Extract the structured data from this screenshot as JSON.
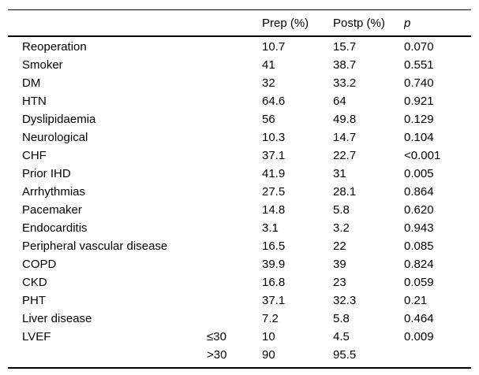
{
  "table": {
    "header": {
      "label": "",
      "sub": "",
      "prep": "Prep (%)",
      "postp": "Postp (%)",
      "p": "p"
    },
    "rows": [
      {
        "label": "Reoperation",
        "sub": "",
        "prep": "10.7",
        "postp": "15.7",
        "p": "0.070"
      },
      {
        "label": "Smoker",
        "sub": "",
        "prep": "41",
        "postp": "38.7",
        "p": "0.551"
      },
      {
        "label": "DM",
        "sub": "",
        "prep": "32",
        "postp": "33.2",
        "p": "0.740"
      },
      {
        "label": "HTN",
        "sub": "",
        "prep": "64.6",
        "postp": "64",
        "p": "0.921"
      },
      {
        "label": "Dyslipidaemia",
        "sub": "",
        "prep": "56",
        "postp": "49.8",
        "p": "0.129"
      },
      {
        "label": "Neurological",
        "sub": "",
        "prep": "10.3",
        "postp": "14.7",
        "p": "0.104"
      },
      {
        "label": "CHF",
        "sub": "",
        "prep": "37.1",
        "postp": "22.7",
        "p": "<0.001"
      },
      {
        "label": "Prior IHD",
        "sub": "",
        "prep": "41.9",
        "postp": "31",
        "p": "0.005"
      },
      {
        "label": "Arrhythmias",
        "sub": "",
        "prep": "27.5",
        "postp": "28.1",
        "p": "0.864"
      },
      {
        "label": "Pacemaker",
        "sub": "",
        "prep": "14.8",
        "postp": "5.8",
        "p": "0.620"
      },
      {
        "label": "Endocarditis",
        "sub": "",
        "prep": "3.1",
        "postp": "3.2",
        "p": "0.943"
      },
      {
        "label": "Peripheral vascular disease",
        "sub": "",
        "prep": "16.5",
        "postp": "22",
        "p": "0.085"
      },
      {
        "label": "COPD",
        "sub": "",
        "prep": "39.9",
        "postp": "39",
        "p": "0.824"
      },
      {
        "label": "CKD",
        "sub": "",
        "prep": "16.8",
        "postp": "23",
        "p": "0.059"
      },
      {
        "label": "PHT",
        "sub": "",
        "prep": "37.1",
        "postp": "32.3",
        "p": "0.21"
      },
      {
        "label": "Liver disease",
        "sub": "",
        "prep": "7.2",
        "postp": "5.8",
        "p": "0.464"
      },
      {
        "label": "LVEF",
        "sub": "≤30",
        "prep": "10",
        "postp": "4.5",
        "p": "0.009"
      },
      {
        "label": "",
        "sub": ">30",
        "prep": "90",
        "postp": "95.5",
        "p": ""
      }
    ]
  }
}
